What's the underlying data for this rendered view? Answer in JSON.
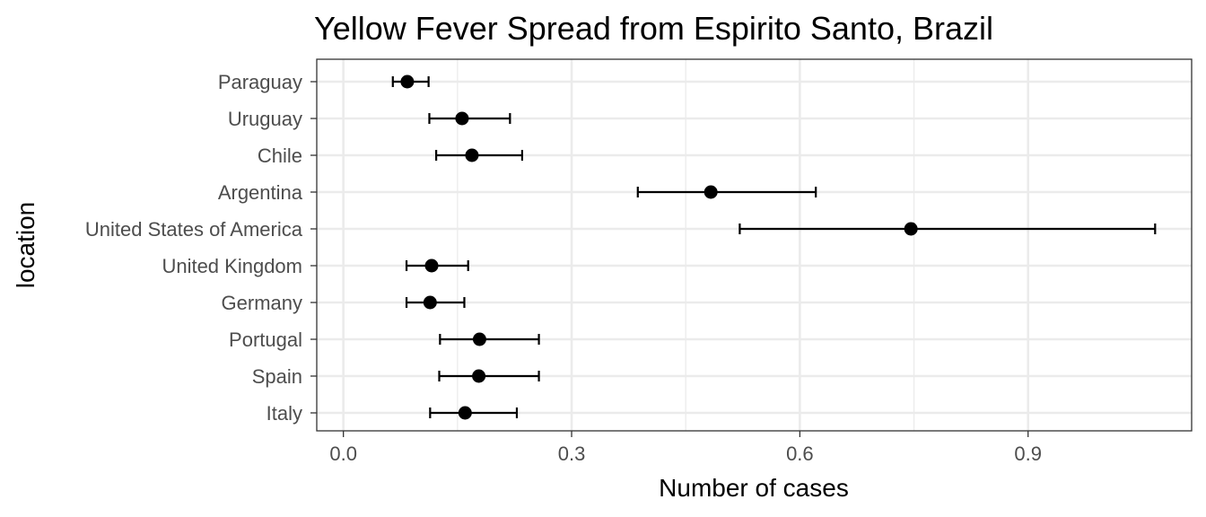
{
  "chart_data": {
    "type": "scatter",
    "title": "Yellow Fever Spread from Espirito Santo, Brazil",
    "xlabel": "Number of cases",
    "ylabel": "location",
    "xlim": [
      -0.035,
      1.115
    ],
    "x_ticks": [
      0.0,
      0.3,
      0.6,
      0.9
    ],
    "x_tick_labels": [
      "0.0",
      "0.3",
      "0.6",
      "0.9"
    ],
    "grid": true,
    "points": [
      {
        "location": "Paraguay",
        "value": 0.084,
        "lower": 0.065,
        "upper": 0.112
      },
      {
        "location": "Uruguay",
        "value": 0.156,
        "lower": 0.113,
        "upper": 0.219
      },
      {
        "location": "Chile",
        "value": 0.169,
        "lower": 0.122,
        "upper": 0.235
      },
      {
        "location": "Argentina",
        "value": 0.483,
        "lower": 0.387,
        "upper": 0.621
      },
      {
        "location": "United States of America",
        "value": 0.746,
        "lower": 0.521,
        "upper": 1.067
      },
      {
        "location": "United Kingdom",
        "value": 0.116,
        "lower": 0.083,
        "upper": 0.164
      },
      {
        "location": "Germany",
        "value": 0.114,
        "lower": 0.083,
        "upper": 0.159
      },
      {
        "location": "Portugal",
        "value": 0.179,
        "lower": 0.127,
        "upper": 0.257
      },
      {
        "location": "Spain",
        "value": 0.178,
        "lower": 0.126,
        "upper": 0.257
      },
      {
        "location": "Italy",
        "value": 0.16,
        "lower": 0.114,
        "upper": 0.228
      }
    ]
  }
}
